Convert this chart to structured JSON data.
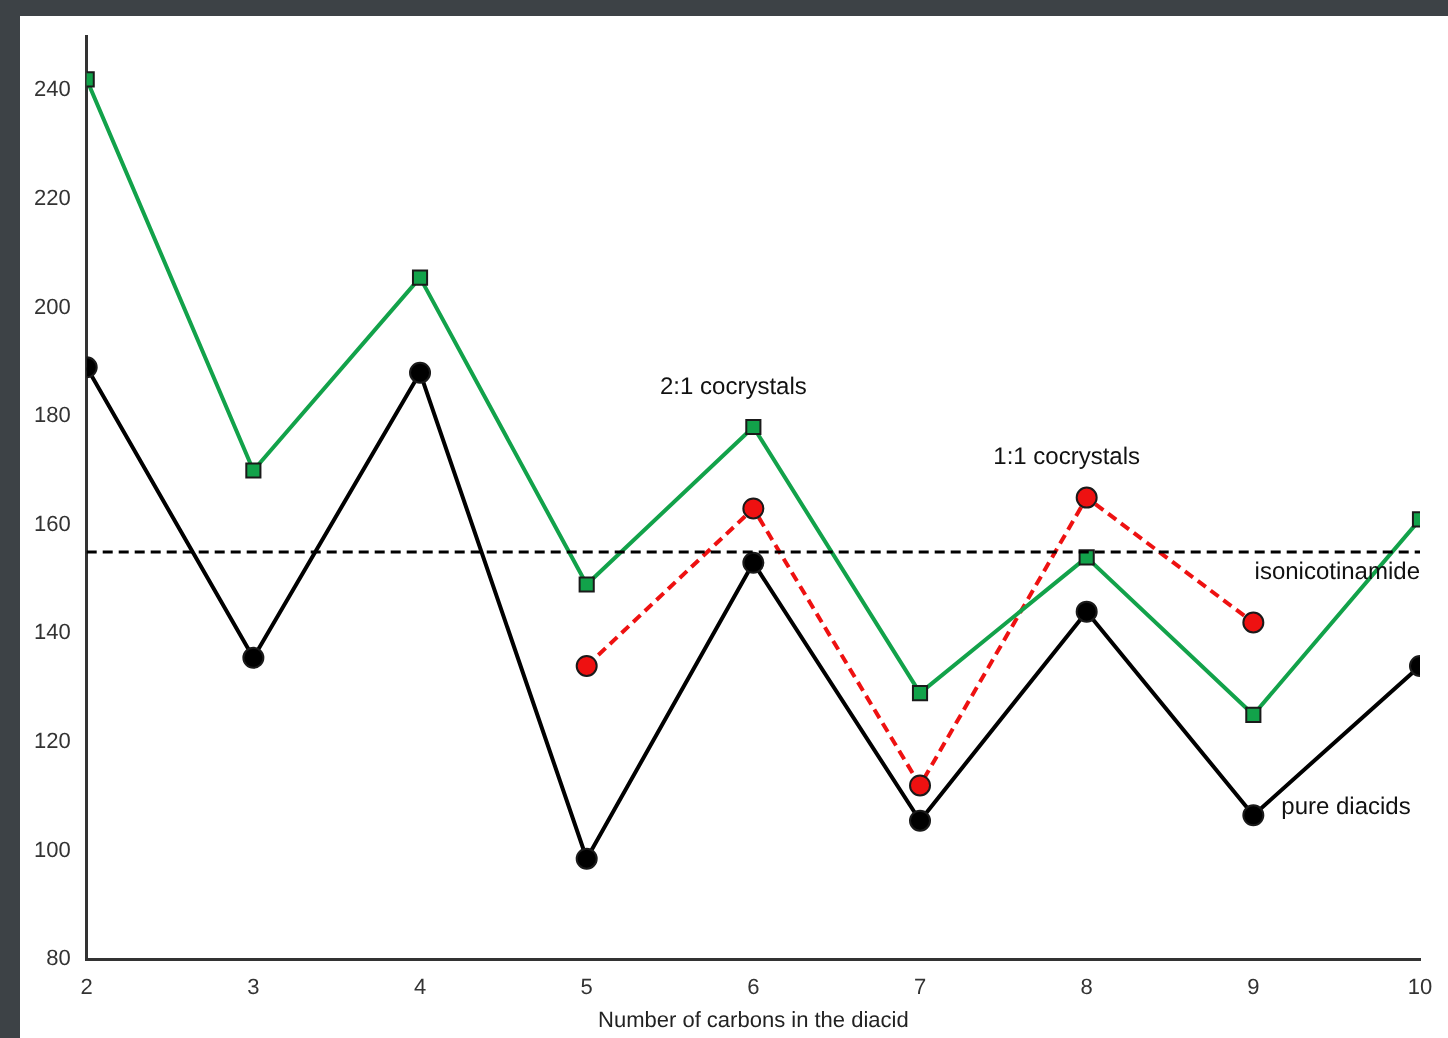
{
  "chart_data": {
    "type": "line",
    "xlabel": "Number of carbons in the diacid",
    "x": [
      2,
      3,
      4,
      5,
      6,
      7,
      8,
      9,
      10
    ],
    "xlim": [
      2,
      10
    ],
    "xticks": [
      2,
      3,
      4,
      5,
      6,
      7,
      8,
      9,
      10
    ],
    "ylim": [
      80,
      250
    ],
    "yticks": [
      80,
      100,
      120,
      140,
      160,
      180,
      200,
      220,
      240
    ],
    "grid": false,
    "legend": false,
    "series": [
      {
        "name": "2:1 cocrystals",
        "color": "#12a24a",
        "marker": "square",
        "line_style": "solid",
        "values": [
          242,
          170,
          205.5,
          149,
          178,
          129,
          154,
          125,
          161
        ]
      },
      {
        "name": "pure diacids",
        "color": "#000000",
        "marker": "circle",
        "line_style": "solid",
        "values": [
          189,
          135.5,
          188,
          98.5,
          153,
          105.5,
          144,
          106.5,
          134
        ]
      },
      {
        "name": "1:1 cocrystals",
        "color": "#ee1111",
        "marker": "circle",
        "line_style": "dashed",
        "values": [
          null,
          null,
          null,
          134,
          163,
          112,
          165,
          142,
          null
        ]
      }
    ],
    "ref_lines": [
      {
        "axis": "y",
        "value": 155,
        "label": "isonicotinamide",
        "color": "#000000",
        "line_style": "dashed"
      }
    ]
  }
}
